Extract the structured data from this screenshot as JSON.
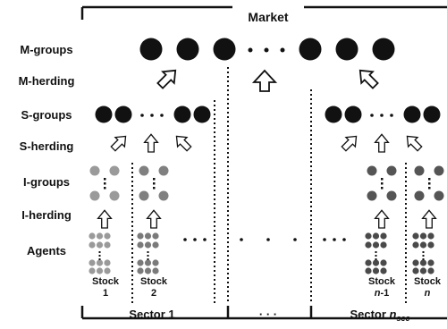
{
  "title": "Market",
  "row_labels": {
    "m_groups": "M-groups",
    "m_herding": "M-herding",
    "s_groups": "S-groups",
    "s_herding": "S-herding",
    "i_groups": "I-groups",
    "i_herding": "I-herding",
    "agents": "Agents"
  },
  "stocks": {
    "s1": [
      "Stock",
      "1"
    ],
    "s2": [
      "Stock",
      "2"
    ],
    "sn1_word": "Stock",
    "sn1_var": "n",
    "sn1_suffix": "-1",
    "sn_word": "Stock",
    "sn_var": "n"
  },
  "sectors": {
    "first": "Sector 1",
    "last_prefix": "Sector ",
    "last_var": "n",
    "last_sub": "sec",
    "ellipsis": "· · ·"
  },
  "colors": {
    "dark": "#111111",
    "i_light": "#9a9a9a",
    "i_dark": "#555555"
  }
}
